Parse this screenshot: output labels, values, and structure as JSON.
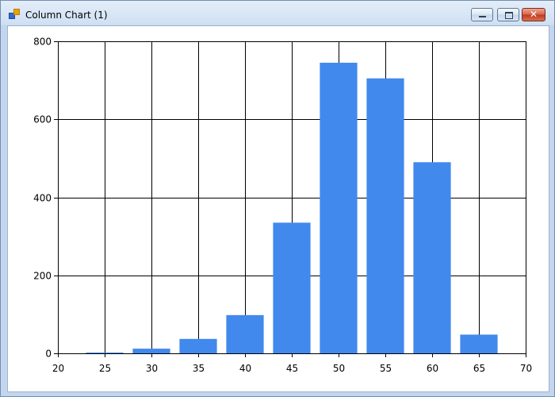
{
  "window": {
    "title": "Column Chart (1)",
    "icon": "chart-app-icon",
    "controls": {
      "minimize_icon": "minimize-icon",
      "maximize_icon": "maximize-icon",
      "close_icon": "close-icon",
      "close_glyph": "✕"
    }
  },
  "chart_data": {
    "type": "bar",
    "title": "",
    "xlabel": "",
    "ylabel": "",
    "x": [
      25,
      30,
      35,
      40,
      45,
      50,
      55,
      60,
      65
    ],
    "values": [
      2,
      12,
      37,
      98,
      335,
      745,
      705,
      490,
      48
    ],
    "bar_width": 4,
    "xlim": [
      20,
      70
    ],
    "ylim": [
      0,
      800
    ],
    "xticks": [
      20,
      25,
      30,
      35,
      40,
      45,
      50,
      55,
      60,
      65,
      70
    ],
    "yticks": [
      0,
      200,
      400,
      600,
      800
    ],
    "grid": true,
    "legend": "none",
    "bar_color": "#4189ed",
    "grid_color": "#000000"
  }
}
